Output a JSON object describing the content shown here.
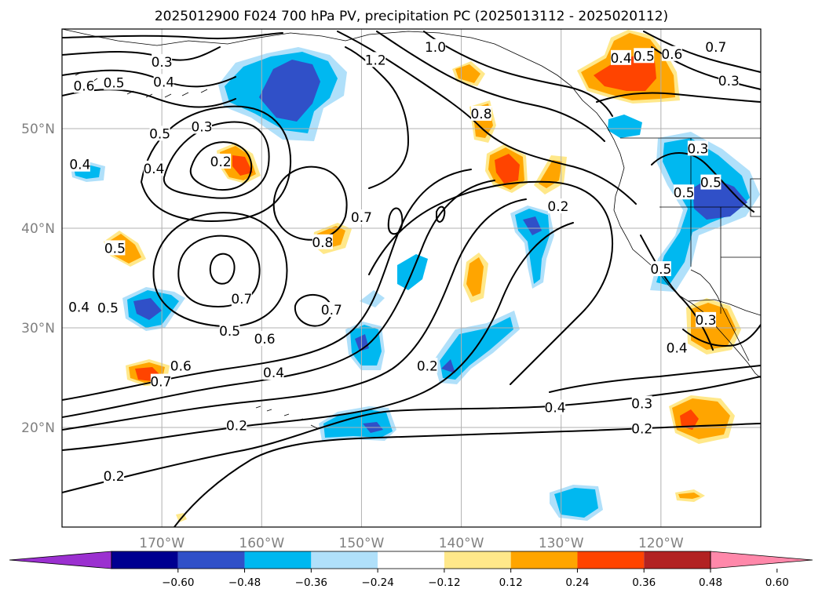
{
  "title": "2025012900 F024 700 hPa PV, precipitation PC (2025013112 - 2025020112)",
  "map": {
    "projection": "plate carree",
    "extent": {
      "lon_min": -180,
      "lon_max": -110,
      "lat_min": 10,
      "lat_max": 60
    },
    "lat_ticks": [
      {
        "value": 20,
        "label": "20°N"
      },
      {
        "value": 30,
        "label": "30°N"
      },
      {
        "value": 40,
        "label": "40°N"
      },
      {
        "value": 50,
        "label": "50°N"
      }
    ],
    "lon_ticks": [
      {
        "value": -170,
        "label": "170°W"
      },
      {
        "value": -160,
        "label": "160°W"
      },
      {
        "value": -150,
        "label": "150°W"
      },
      {
        "value": -140,
        "label": "140°W"
      },
      {
        "value": -130,
        "label": "130°W"
      },
      {
        "value": -120,
        "label": "120°W"
      }
    ],
    "gridlines": true
  },
  "contour_labels": [
    {
      "text": "1.2",
      "lon": -148.6,
      "lat": 56.9
    },
    {
      "text": "1.0",
      "lon": -142.6,
      "lat": 58.2
    },
    {
      "text": "0.3",
      "lon": -170.0,
      "lat": 56.7
    },
    {
      "text": "0.4",
      "lon": -169.8,
      "lat": 54.7
    },
    {
      "text": "0.5",
      "lon": -174.8,
      "lat": 54.6
    },
    {
      "text": "0.6",
      "lon": -177.8,
      "lat": 54.3
    },
    {
      "text": "0.3",
      "lon": -166.0,
      "lat": 50.2
    },
    {
      "text": "0.5",
      "lon": -170.2,
      "lat": 49.5
    },
    {
      "text": "0.4",
      "lon": -170.8,
      "lat": 46.0
    },
    {
      "text": "0.2",
      "lon": -164.1,
      "lat": 46.7
    },
    {
      "text": "0.4",
      "lon": -178.2,
      "lat": 46.4
    },
    {
      "text": "0.7",
      "lon": -150.0,
      "lat": 41.1
    },
    {
      "text": "0.8",
      "lon": -153.9,
      "lat": 38.6
    },
    {
      "text": "0.5",
      "lon": -174.7,
      "lat": 38.0
    },
    {
      "text": "0.7",
      "lon": -162.0,
      "lat": 32.9
    },
    {
      "text": "0.5",
      "lon": -175.4,
      "lat": 32.0
    },
    {
      "text": "0.4",
      "lon": -178.3,
      "lat": 32.1
    },
    {
      "text": "0.7",
      "lon": -153.0,
      "lat": 31.8
    },
    {
      "text": "0.5",
      "lon": -163.2,
      "lat": 29.7
    },
    {
      "text": "0.6",
      "lon": -159.7,
      "lat": 28.9
    },
    {
      "text": "0.6",
      "lon": -168.1,
      "lat": 26.2
    },
    {
      "text": "0.7",
      "lon": -170.1,
      "lat": 24.6
    },
    {
      "text": "0.4",
      "lon": -158.8,
      "lat": 25.5
    },
    {
      "text": "0.2",
      "lon": -143.4,
      "lat": 26.2
    },
    {
      "text": "0.2",
      "lon": -162.5,
      "lat": 20.2
    },
    {
      "text": "0.2",
      "lon": -174.8,
      "lat": 15.1
    },
    {
      "text": "0.8",
      "lon": -138.0,
      "lat": 51.5
    },
    {
      "text": "0.2",
      "lon": -130.3,
      "lat": 42.2
    },
    {
      "text": "0.4",
      "lon": -130.6,
      "lat": 22.0
    },
    {
      "text": "0.3",
      "lon": -121.9,
      "lat": 22.4
    },
    {
      "text": "0.2",
      "lon": -121.9,
      "lat": 19.9
    },
    {
      "text": "0.4",
      "lon": -124.0,
      "lat": 57.1
    },
    {
      "text": "0.5",
      "lon": -121.7,
      "lat": 57.3
    },
    {
      "text": "0.6",
      "lon": -118.9,
      "lat": 57.5
    },
    {
      "text": "0.7",
      "lon": -114.5,
      "lat": 58.2
    },
    {
      "text": "0.3",
      "lon": -113.2,
      "lat": 54.8
    },
    {
      "text": "0.3",
      "lon": -116.3,
      "lat": 48.0
    },
    {
      "text": "0.5",
      "lon": -115.0,
      "lat": 44.6
    },
    {
      "text": "0.5",
      "lon": -117.7,
      "lat": 43.6
    },
    {
      "text": "0.5",
      "lon": -120.0,
      "lat": 35.9
    },
    {
      "text": "0.3",
      "lon": -115.5,
      "lat": 30.8
    },
    {
      "text": "0.4",
      "lon": -118.4,
      "lat": 28.0
    }
  ],
  "colorbar": {
    "extend": "both",
    "ticks": [
      "−0.60",
      "−0.48",
      "−0.36",
      "−0.24",
      "−0.12",
      "0.12",
      "0.24",
      "0.36",
      "0.48",
      "0.60"
    ],
    "colors": [
      "#9b30d0",
      "#000090",
      "#3050c8",
      "#00b8f0",
      "#b0e0fa",
      "#ffffff",
      "#ffe88a",
      "#ffa500",
      "#ff4400",
      "#b22222",
      "#ff88aa"
    ]
  },
  "colors": {
    "pc_light_blue": "#b0e0fa",
    "pc_blue": "#00b8f0",
    "pc_royal_blue": "#3050c8",
    "pc_light_yellow": "#ffe88a",
    "pc_orange": "#ffa500",
    "pc_red_orange": "#ff4400",
    "grid": "#b0b0b0",
    "tick_label": "#808080"
  }
}
